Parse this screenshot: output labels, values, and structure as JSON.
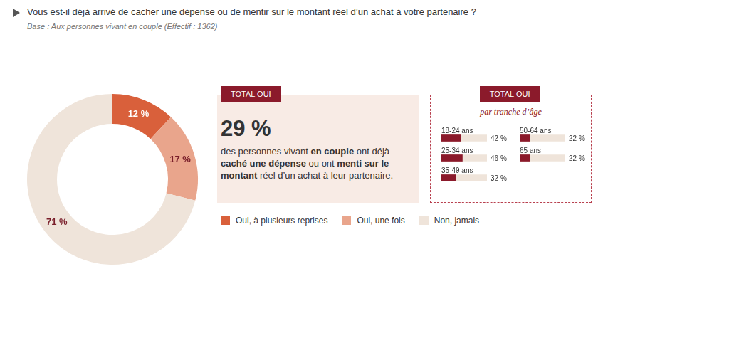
{
  "title": "Vous est-il déjà arrivé de cacher une dépense ou de mentir sur le montant réel d’un achat à votre partenaire ?",
  "subtitle": "Base : Aux personnes vivant en couple (Effectif : 1362)",
  "summary": {
    "badge": "TOTAL OUI",
    "headline": "29 %",
    "text_parts": [
      "des personnes vivant ",
      "en couple",
      " ont déjà ",
      "caché une dépense",
      " ou ont ",
      "menti sur le montant",
      " réel d’un achat à leur partenaire."
    ]
  },
  "chart_data": [
    {
      "type": "doughnut",
      "categories": [
        "Oui, à plusieurs reprises",
        "Oui, une fois",
        "Non, jamais"
      ],
      "values": [
        12,
        17,
        71
      ],
      "value_labels": [
        "12 %",
        "17 %",
        "71 %"
      ],
      "colors": [
        "#d9603b",
        "#e9a58c",
        "#efe4da"
      ],
      "data_labels": true,
      "legend": "right"
    },
    {
      "type": "bar",
      "title": "TOTAL OUI",
      "subtitle": "par tranche d’âge",
      "orientation": "horizontal",
      "categories": [
        "18-24 ans",
        "25-34 ans",
        "35-49 ans",
        "50-64 ans",
        "65 ans"
      ],
      "values": [
        42,
        46,
        32,
        22,
        22
      ],
      "value_labels": [
        "42 %",
        "46 %",
        "32 %",
        "22 %",
        "22 %"
      ],
      "color": "#8b1a2b",
      "xlim": [
        0,
        100
      ],
      "data_labels": true,
      "tick_labels": false,
      "grid": false
    }
  ]
}
